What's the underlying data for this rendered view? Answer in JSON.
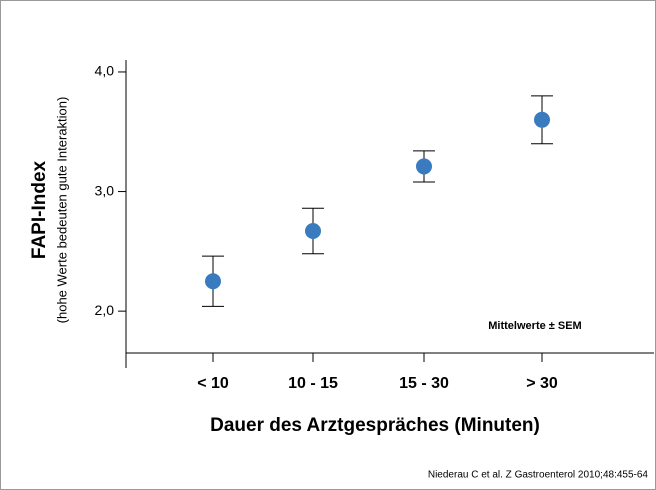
{
  "chart_data": {
    "type": "errorbar",
    "y_label": "FAPI-Index",
    "y_sublabel": "(hohe Werte bedeuten gute Interaktion)",
    "x_label": "Dauer des Arztgespräches (Minuten)",
    "annotation": "Mittelwerte ± SEM",
    "source": "Niederau C et al. Z Gastroenterol 2010;48:455-64",
    "categories": [
      "< 10",
      "10 - 15",
      "15 - 30",
      "> 30"
    ],
    "values": [
      2.25,
      2.67,
      3.21,
      3.6
    ],
    "errors": [
      0.21,
      0.19,
      0.13,
      0.2
    ],
    "color": "#3a7bbf",
    "ylim": [
      1.65,
      4.1
    ],
    "yticks": [
      {
        "value": 2,
        "label": "2,0"
      },
      {
        "value": 3,
        "label": "3,0"
      },
      {
        "value": 4,
        "label": "4,0"
      }
    ]
  }
}
